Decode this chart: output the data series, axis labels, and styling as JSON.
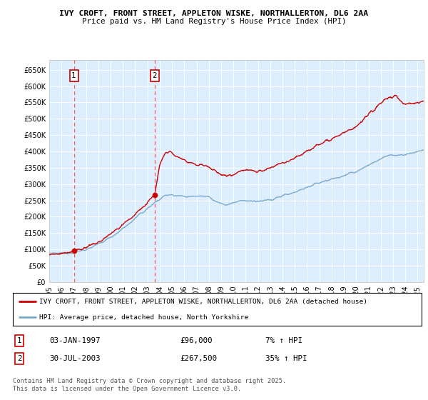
{
  "title1": "IVY CROFT, FRONT STREET, APPLETON WISKE, NORTHALLERTON, DL6 2AA",
  "title2": "Price paid vs. HM Land Registry's House Price Index (HPI)",
  "ylabel_ticks": [
    "£0",
    "£50K",
    "£100K",
    "£150K",
    "£200K",
    "£250K",
    "£300K",
    "£350K",
    "£400K",
    "£450K",
    "£500K",
    "£550K",
    "£600K",
    "£650K"
  ],
  "ytick_vals": [
    0,
    50000,
    100000,
    150000,
    200000,
    250000,
    300000,
    350000,
    400000,
    450000,
    500000,
    550000,
    600000,
    650000
  ],
  "ylim": [
    0,
    680000
  ],
  "xlim_start": 1995.0,
  "xlim_end": 2025.5,
  "purchase1_x": 1997.01,
  "purchase1_y": 96000,
  "purchase2_x": 2003.58,
  "purchase2_y": 267500,
  "legend_line1": "IVY CROFT, FRONT STREET, APPLETON WISKE, NORTHALLERTON, DL6 2AA (detached house)",
  "legend_line2": "HPI: Average price, detached house, North Yorkshire",
  "line_color_red": "#cc0000",
  "line_color_blue": "#7aaacc",
  "bg_color": "#ddeeff",
  "grid_color": "#ffffff",
  "vline_color": "#ff5555",
  "marker_color": "#cc0000",
  "footnote": "Contains HM Land Registry data © Crown copyright and database right 2025.\nThis data is licensed under the Open Government Licence v3.0."
}
